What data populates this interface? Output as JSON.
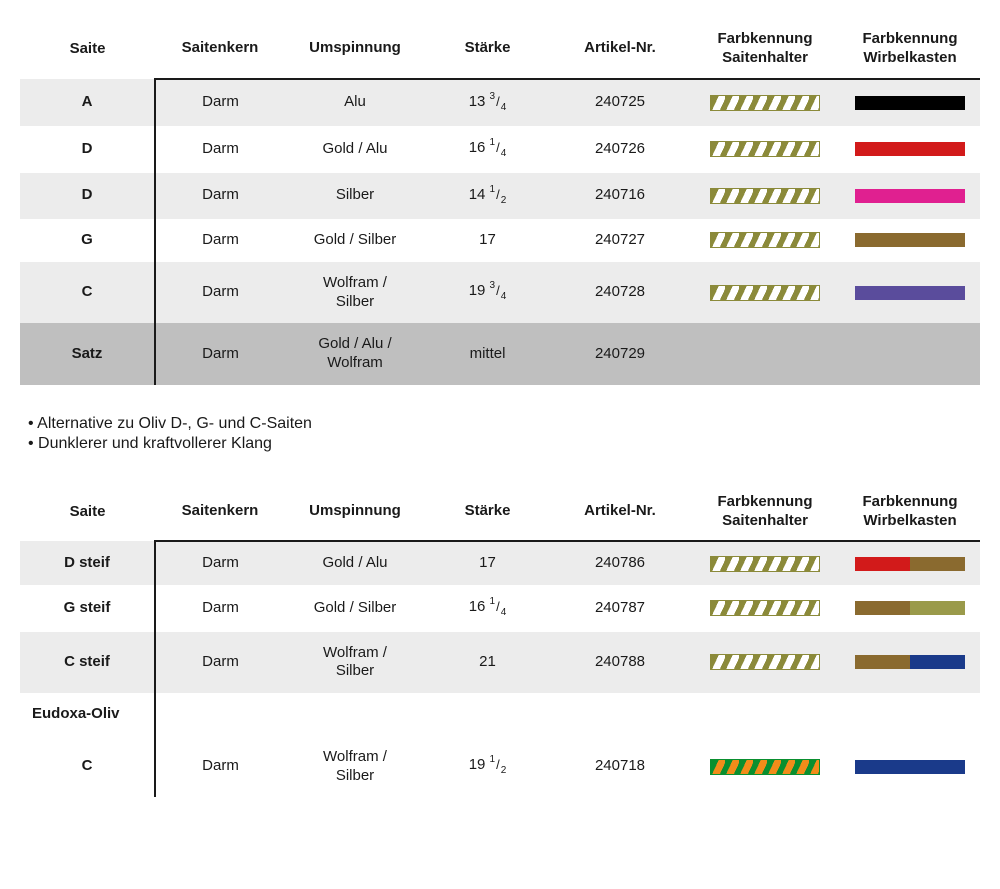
{
  "columns": {
    "saite": "Saite",
    "kern": "Saitenkern",
    "umsp": "Umspinnung",
    "staerke": "Stärke",
    "artnr": "Artikel-Nr.",
    "fk1_l1": "Farbkennung",
    "fk1_l2": "Saitenhalter",
    "fk2_l1": "Farbkennung",
    "fk2_l2": "Wirbelkasten"
  },
  "stripe_olive": {
    "fg": "#8b8a3a",
    "bg": "#ffffff",
    "border": "#8b8a3a"
  },
  "stripe_orange_green": {
    "fg": "#0a8f2f",
    "bg": "#f28c1a",
    "border": "#0a8f2f"
  },
  "table1": {
    "rows": [
      {
        "saite": "A",
        "kern": "Darm",
        "umsp": "Alu",
        "staerke_whole": "13",
        "staerke_num": "3",
        "staerke_den": "4",
        "artnr": "240725",
        "stripe": "olive",
        "solid": "#000000"
      },
      {
        "saite": "D",
        "kern": "Darm",
        "umsp": "Gold / Alu",
        "staerke_whole": "16",
        "staerke_num": "1",
        "staerke_den": "4",
        "artnr": "240726",
        "stripe": "olive",
        "solid": "#d21a1a"
      },
      {
        "saite": "D",
        "kern": "Darm",
        "umsp": "Silber",
        "staerke_whole": "14",
        "staerke_num": "1",
        "staerke_den": "2",
        "artnr": "240716",
        "stripe": "olive",
        "solid": "#e02090"
      },
      {
        "saite": "G",
        "kern": "Darm",
        "umsp": "Gold / Silber",
        "staerke_plain": "17",
        "artnr": "240727",
        "stripe": "olive",
        "solid": "#8a6a2f"
      },
      {
        "saite": "C",
        "kern": "Darm",
        "umsp": "Wolfram / Silber",
        "staerke_whole": "19",
        "staerke_num": "3",
        "staerke_den": "4",
        "artnr": "240728",
        "stripe": "olive",
        "solid": "#5a4c9c"
      },
      {
        "saite": "Satz",
        "kern": "Darm",
        "umsp": "Gold / Alu / Wolfram",
        "staerke_plain": "mittel",
        "artnr": "240729",
        "dark": true
      }
    ]
  },
  "bullets": [
    "• Alternative zu Oliv D-, G- und C-Saiten",
    "• Dunklerer und kraftvollerer Klang"
  ],
  "table2": {
    "rows": [
      {
        "saite": "D steif",
        "kern": "Darm",
        "umsp": "Gold / Alu",
        "staerke_plain": "17",
        "artnr": "240786",
        "stripe": "olive",
        "split": [
          "#d21a1a",
          "#8a6a2f"
        ]
      },
      {
        "saite": "G steif",
        "kern": "Darm",
        "umsp": "Gold / Silber",
        "staerke_whole": "16",
        "staerke_num": "1",
        "staerke_den": "4",
        "artnr": "240787",
        "stripe": "olive",
        "split": [
          "#8a6a2f",
          "#9a9a4a"
        ]
      },
      {
        "saite": "C steif",
        "kern": "Darm",
        "umsp": "Wolfram / Silber",
        "staerke_plain": "21",
        "artnr": "240788",
        "stripe": "olive",
        "split": [
          "#8a6a2f",
          "#1a3a8a"
        ]
      },
      {
        "section": "Eudoxa-Oliv"
      },
      {
        "saite": "C",
        "kern": "Darm",
        "umsp": "Wolfram / Silber",
        "staerke_whole": "19",
        "staerke_num": "1",
        "staerke_den": "2",
        "artnr": "240718",
        "stripe": "orange_green",
        "solid": "#1a3a8a"
      }
    ]
  }
}
